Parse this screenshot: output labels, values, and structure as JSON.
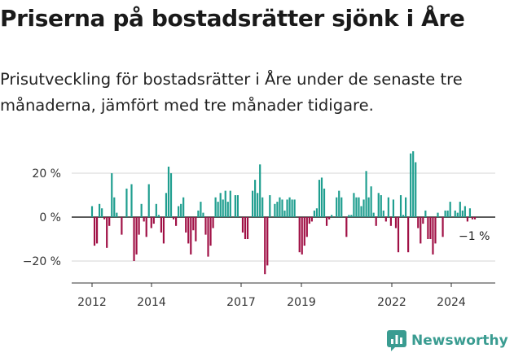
{
  "title": "Priserna på bostadsrätter sjönk i Åre",
  "subtitle": "Prisutveckling för bostadsrätter i Åre under de senaste tre månaderna, jämfört med tre månader tidigare.",
  "brand": {
    "name": "Newsworthy",
    "color": "#3a9c91"
  },
  "end_label": "−1 %",
  "chart_data": {
    "type": "bar",
    "title": "",
    "xlabel": "",
    "ylabel": "",
    "ylim": [
      -30,
      30
    ],
    "y_ticks": [
      20,
      0,
      -20
    ],
    "y_tick_labels": [
      "20 %",
      "0 %",
      "−20 %"
    ],
    "x_tick_labels": [
      "2012",
      "2014",
      "2017",
      "2019",
      "2022",
      "2024"
    ],
    "colors": {
      "positive": "#1f9e8f",
      "negative": "#a01045"
    },
    "grid": true,
    "series": [
      {
        "values": [
          5,
          -13,
          -12,
          6,
          4,
          -1,
          -14,
          -4,
          20,
          9,
          2,
          0,
          -8,
          0,
          13,
          0,
          15,
          -20,
          -17,
          -8,
          6,
          -2,
          -9,
          15,
          -5,
          -3,
          6,
          1,
          -7,
          -12,
          11,
          23,
          20,
          -1,
          -4,
          5,
          6,
          9,
          -7,
          -12,
          -17,
          -6,
          -11,
          3,
          7,
          2,
          -8,
          -18,
          -13,
          -5,
          9,
          7,
          11,
          8,
          12,
          7,
          12,
          0,
          10,
          10,
          0,
          -7,
          -10,
          -10,
          0,
          12,
          17,
          11,
          24,
          9,
          -26,
          -22,
          10,
          0,
          6,
          7,
          9,
          8,
          3,
          8,
          9,
          8,
          8,
          0,
          -16,
          -17,
          -13,
          -9,
          -3,
          -2,
          3,
          4,
          17,
          18,
          13,
          -4,
          -1,
          1,
          0,
          9,
          12,
          9,
          0,
          -9,
          1,
          1,
          11,
          9,
          9,
          5,
          8,
          21,
          9,
          14,
          2,
          -4,
          11,
          10,
          3,
          -2,
          9,
          -4,
          8,
          -5,
          -16,
          10,
          1,
          9,
          -16,
          29,
          30,
          25,
          -5,
          -12,
          -3,
          3,
          -10,
          -10,
          -17,
          -12,
          2,
          0,
          -9,
          3,
          3,
          7,
          0,
          3,
          2,
          7,
          3,
          5,
          -2,
          4,
          -1,
          -1
        ]
      }
    ]
  }
}
